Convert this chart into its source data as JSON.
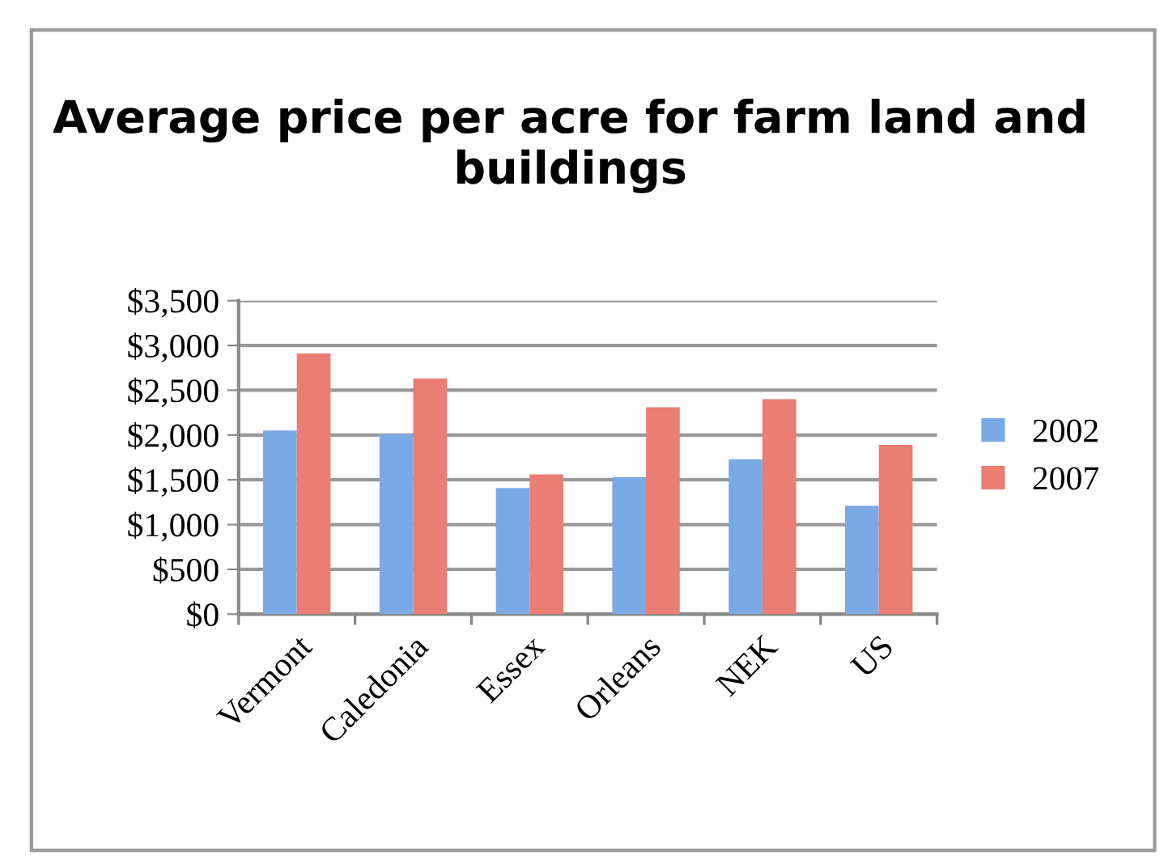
{
  "chart_data": {
    "type": "bar",
    "title": "Average price per acre for farm land and buildings",
    "categories": [
      "Vermont",
      "Caledonia",
      "Essex",
      "Orleans",
      "NEK",
      "US"
    ],
    "series": [
      {
        "name": "2002",
        "color": "#7aaae6",
        "values": [
          2050,
          2010,
          1410,
          1530,
          1730,
          1210
        ]
      },
      {
        "name": "2007",
        "color": "#ea7d74",
        "values": [
          2910,
          2630,
          1560,
          2310,
          2400,
          1890
        ]
      }
    ],
    "ylim": [
      0,
      3500
    ],
    "yticks": [
      {
        "value": 0,
        "label": "$0"
      },
      {
        "value": 500,
        "label": "$500"
      },
      {
        "value": 1000,
        "label": "$1,000"
      },
      {
        "value": 1500,
        "label": "$1,500"
      },
      {
        "value": 2000,
        "label": "$2,000"
      },
      {
        "value": 2500,
        "label": "$2,500"
      },
      {
        "value": 3000,
        "label": "$3,000"
      },
      {
        "value": 3500,
        "label": "$3,500"
      }
    ],
    "grid": "y",
    "legend": "right"
  }
}
